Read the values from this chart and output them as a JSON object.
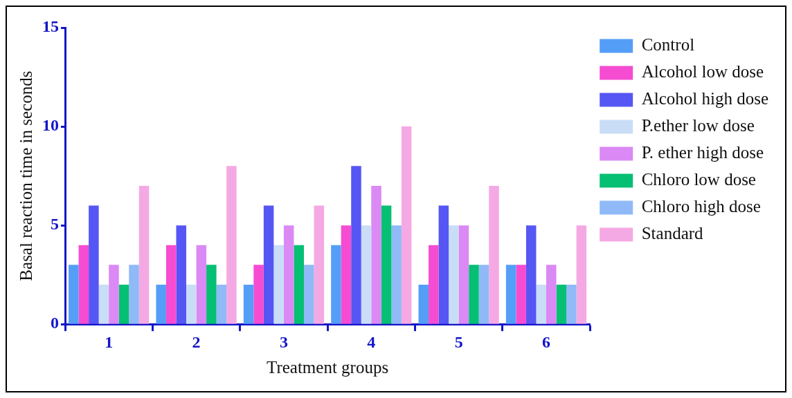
{
  "chart_data": {
    "type": "bar",
    "xlabel": "Treatment groups",
    "ylabel": "Basal reaction time in seconds",
    "categories": [
      "1",
      "2",
      "3",
      "4",
      "5",
      "6"
    ],
    "ylim": [
      0,
      15
    ],
    "yticks": [
      0,
      5,
      10,
      15
    ],
    "grid": false,
    "legend": "right",
    "series": [
      {
        "name": "Control",
        "color": "#559ef8",
        "values": [
          3,
          2,
          2,
          4,
          2,
          3
        ]
      },
      {
        "name": "Alcohol low dose",
        "color": "#f54cd2",
        "values": [
          4,
          4,
          3,
          5,
          4,
          3
        ]
      },
      {
        "name": "Alcohol high dose",
        "color": "#5656f5",
        "values": [
          6,
          5,
          6,
          8,
          6,
          5
        ]
      },
      {
        "name": "P.ether low dose",
        "color": "#c9ddf6",
        "values": [
          2,
          2,
          4,
          5,
          5,
          2
        ]
      },
      {
        "name": "P. ether high dose",
        "color": "#db89f4",
        "values": [
          3,
          4,
          5,
          7,
          5,
          3
        ]
      },
      {
        "name": "Chloro low dose",
        "color": "#05bf73",
        "values": [
          2,
          3,
          4,
          6,
          3,
          2
        ]
      },
      {
        "name": "Chloro high dose",
        "color": "#8fbaf7",
        "values": [
          3,
          2,
          3,
          5,
          3,
          2
        ]
      },
      {
        "name": "Standard",
        "color": "#f5a9e4",
        "values": [
          7,
          8,
          6,
          10,
          7,
          5
        ]
      }
    ]
  }
}
